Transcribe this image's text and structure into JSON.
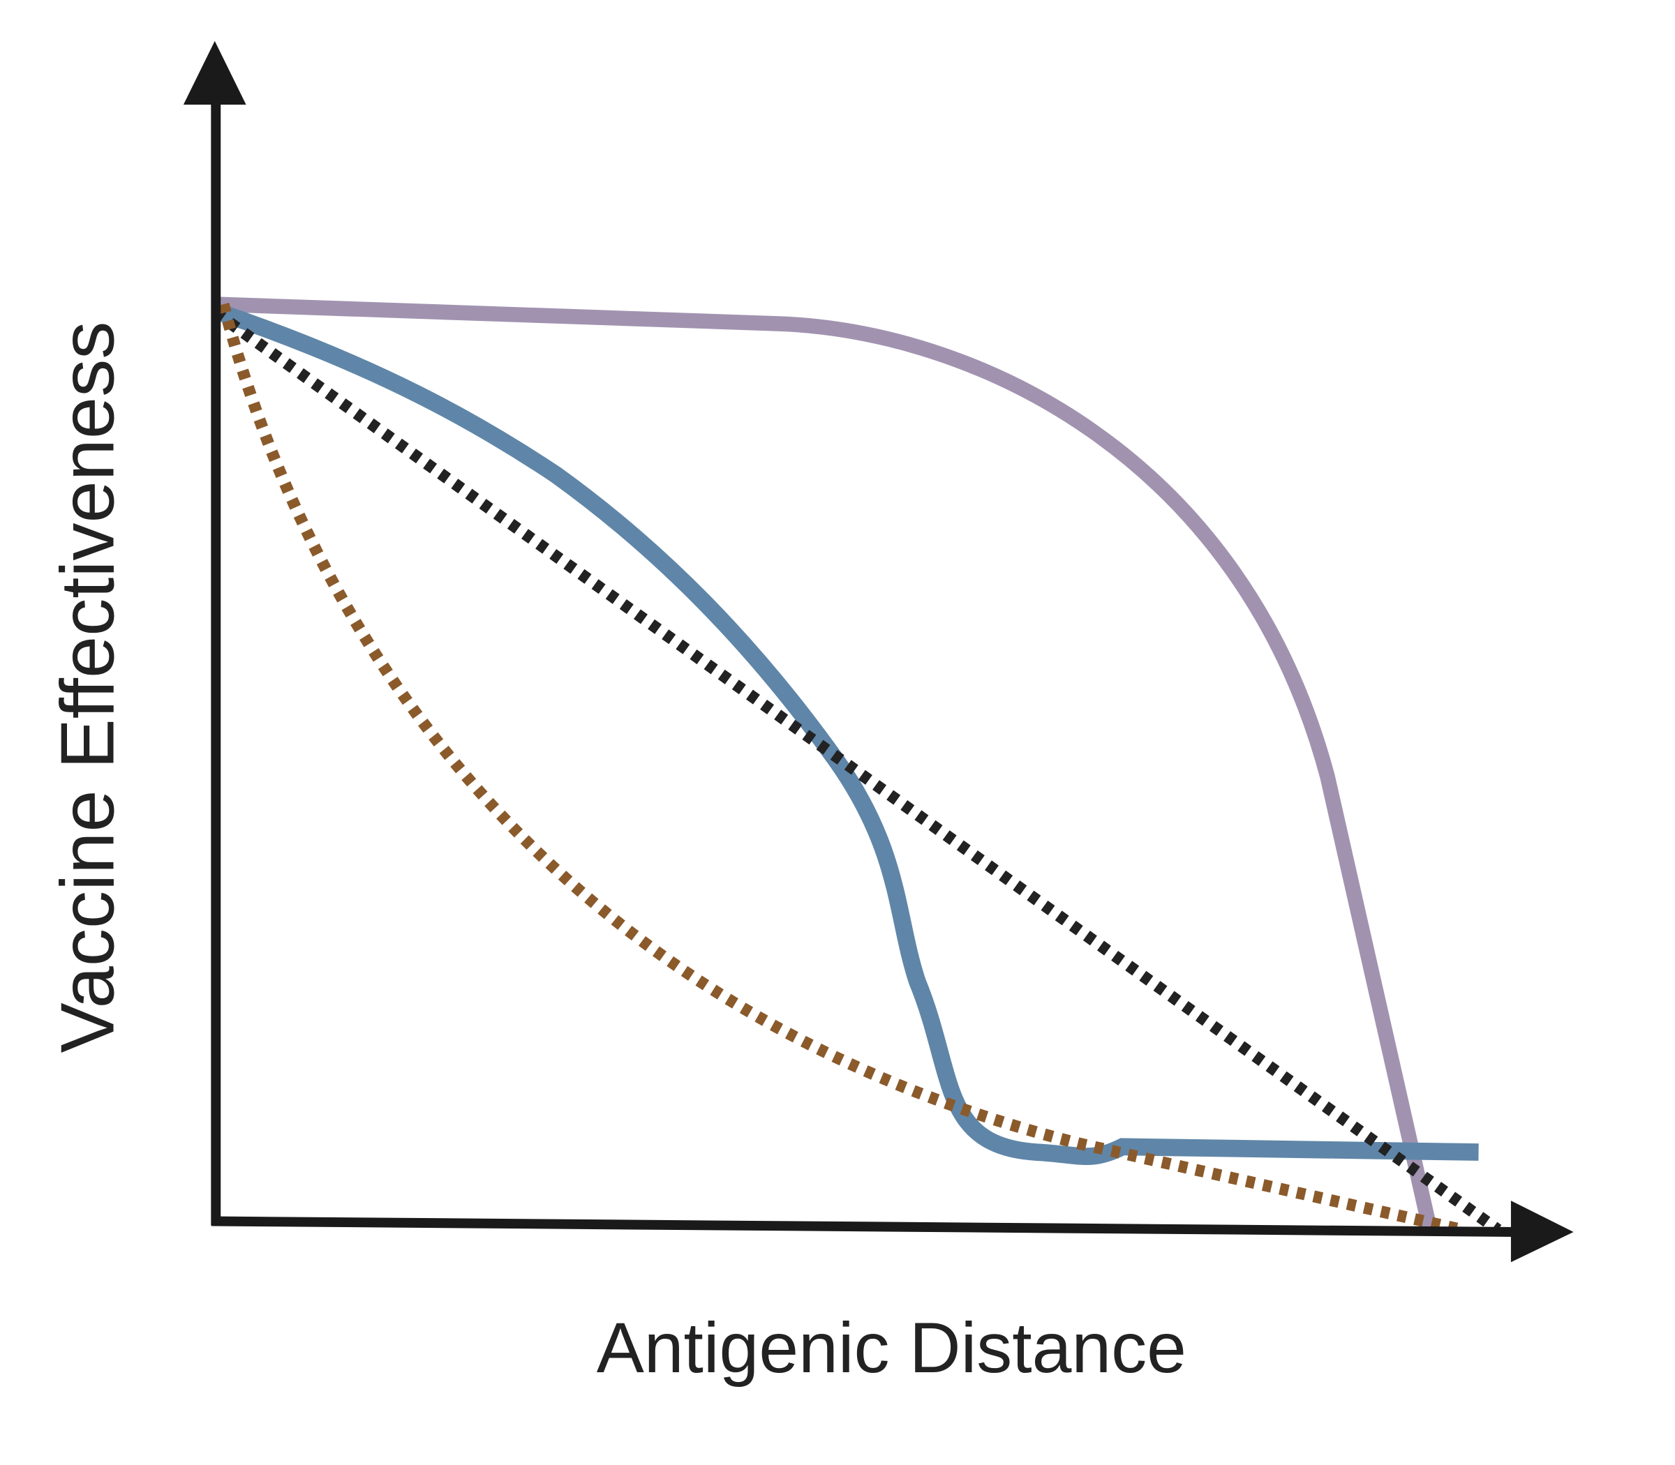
{
  "axes": {
    "y_label": "Vaccine Effectiveness",
    "x_label": "Antigenic Distance"
  }
}
